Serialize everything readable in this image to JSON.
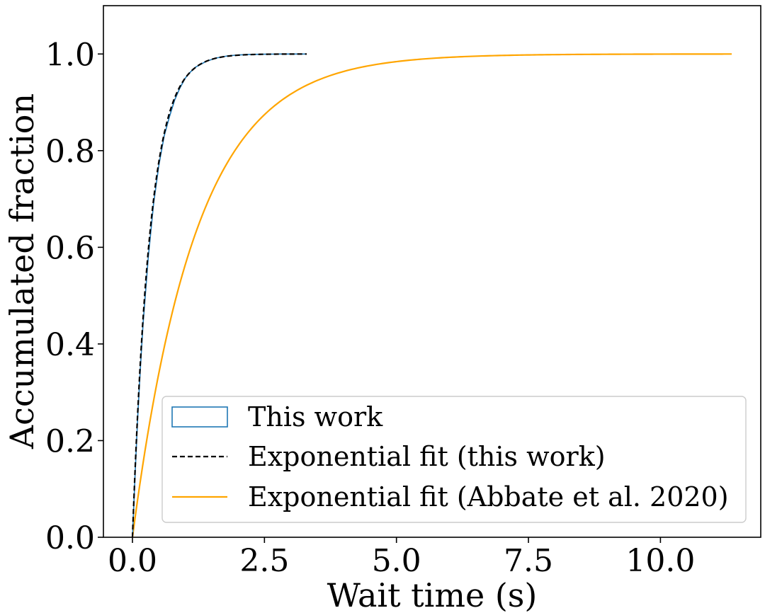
{
  "chart_data": {
    "type": "line",
    "title": "",
    "xlabel": "Wait time (s)",
    "ylabel": "Accumulated fraction",
    "xlim": [
      -0.55,
      11.9
    ],
    "ylim": [
      0.0,
      1.1
    ],
    "xticks": [
      0.0,
      2.5,
      5.0,
      7.5,
      10.0
    ],
    "xtick_labels": [
      "0.0",
      "2.5",
      "5.0",
      "7.5",
      "10.0"
    ],
    "yticks": [
      0.0,
      0.2,
      0.4,
      0.6,
      0.8,
      1.0
    ],
    "ytick_labels": [
      "0.0",
      "0.2",
      "0.4",
      "0.6",
      "0.8",
      "1.0"
    ],
    "grid": false,
    "legend_position": "bottom-right",
    "series": [
      {
        "name": "This work",
        "kind": "step-histogram-cdf",
        "color": "#1f77b4",
        "line_style": "solid",
        "x": [
          0.0,
          0.05,
          0.1,
          0.15,
          0.2,
          0.3,
          0.4,
          0.5,
          0.6,
          0.7,
          0.8,
          0.9,
          1.0,
          1.1,
          1.2,
          1.4,
          1.6,
          1.8,
          2.0,
          2.2,
          2.5,
          2.8,
          3.0,
          3.3
        ],
        "y": [
          0.0,
          0.13,
          0.25,
          0.35,
          0.44,
          0.58,
          0.69,
          0.77,
          0.83,
          0.87,
          0.905,
          0.93,
          0.95,
          0.963,
          0.973,
          0.985,
          0.992,
          0.996,
          0.998,
          0.999,
          0.9995,
          1.0,
          1.0,
          1.0
        ]
      },
      {
        "name": "Exponential fit (this work)",
        "kind": "exponential-cdf",
        "color": "#000000",
        "line_style": "dashed",
        "rate": 3.0,
        "x_range": [
          0.0,
          3.3
        ]
      },
      {
        "name": "Exponential fit (Abbate et al. 2020)",
        "kind": "exponential-cdf",
        "color": "#ffa500",
        "line_style": "solid",
        "rate": 0.83,
        "x_range": [
          0.0,
          11.35
        ]
      }
    ]
  }
}
